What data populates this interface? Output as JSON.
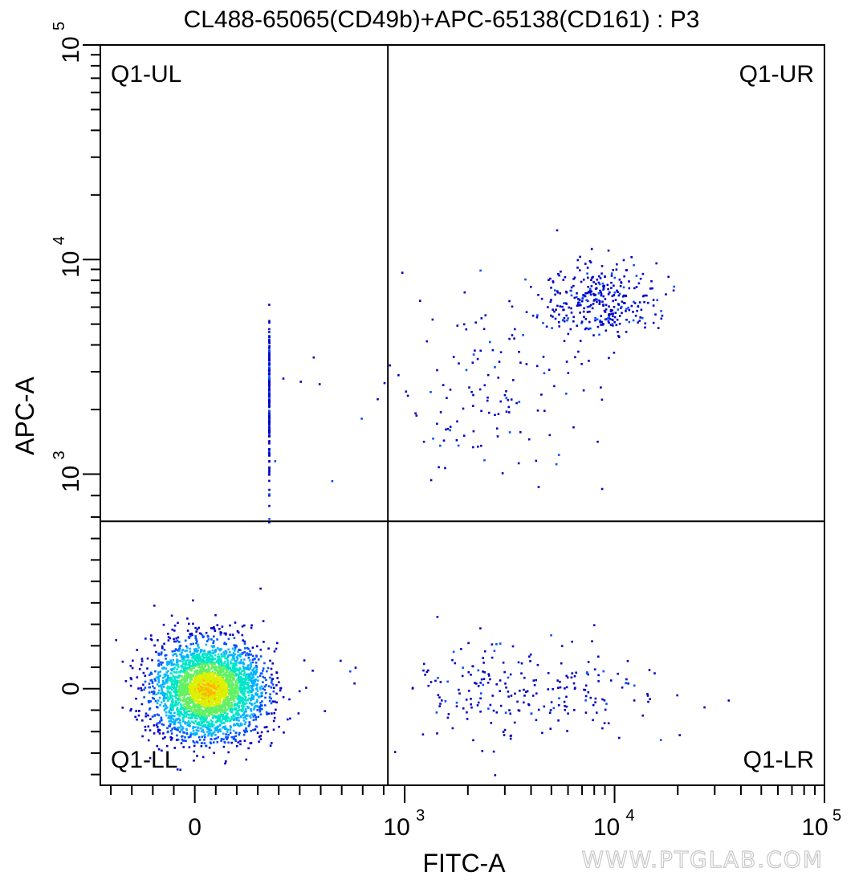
{
  "chart_data": {
    "type": "scatter",
    "title": "CL488-65065(CD49b)+APC-65138(CD161) : P3",
    "xlabel": "FITC-A",
    "ylabel": "APC-A",
    "x_scale": "biexponential",
    "y_scale": "biexponential",
    "xlim": [
      -450,
      100000
    ],
    "ylim": [
      -450,
      100000
    ],
    "x_ticks": [
      {
        "value": 0,
        "label": "0"
      },
      {
        "value": 1000,
        "base": "10",
        "exp": "3"
      },
      {
        "value": 10000,
        "base": "10",
        "exp": "4"
      },
      {
        "value": 100000,
        "base": "10",
        "exp": "5"
      }
    ],
    "y_ticks": [
      {
        "value": 0,
        "label": "0"
      },
      {
        "value": 1000,
        "base": "10",
        "exp": "3"
      },
      {
        "value": 10000,
        "base": "10",
        "exp": "4"
      },
      {
        "value": 100000,
        "base": "10",
        "exp": "5"
      }
    ],
    "gate": {
      "x": 920,
      "y": 780
    },
    "quadrants": [
      {
        "name": "Q1-UL",
        "position": "top-left"
      },
      {
        "name": "Q1-UR",
        "position": "top-right"
      },
      {
        "name": "Q1-LL",
        "position": "bottom-left"
      },
      {
        "name": "Q1-LR",
        "position": "bottom-right"
      }
    ],
    "populations": [
      {
        "name": "",
        "center": [
          60,
          0
        ],
        "spread": [
          130,
          110
        ],
        "count": 3400,
        "density": "high"
      },
      {
        "name": "",
        "center": [
          8500,
          6500
        ],
        "spread": [
          0.13,
          0.08
        ],
        "count": 330,
        "density": "low"
      },
      {
        "name": "",
        "center": [
          350,
          2100
        ],
        "spread": [
          0.2,
          0.18
        ],
        "count": 180,
        "density": "low"
      },
      {
        "name": "",
        "center": [
          3500,
          0
        ],
        "spread": [
          0.35,
          120
        ],
        "count": 240,
        "density": "low"
      },
      {
        "name": "",
        "center": [
          2600,
          2500
        ],
        "spread": [
          0.3,
          0.25
        ],
        "count": 150,
        "density": "low"
      }
    ],
    "grid": false,
    "colormap": [
      "#0000c8",
      "#0050ff",
      "#00b4ff",
      "#00e6c8",
      "#64f064",
      "#dcf000",
      "#ffb400"
    ]
  },
  "watermark": "WWW.PTGLAB.COM"
}
